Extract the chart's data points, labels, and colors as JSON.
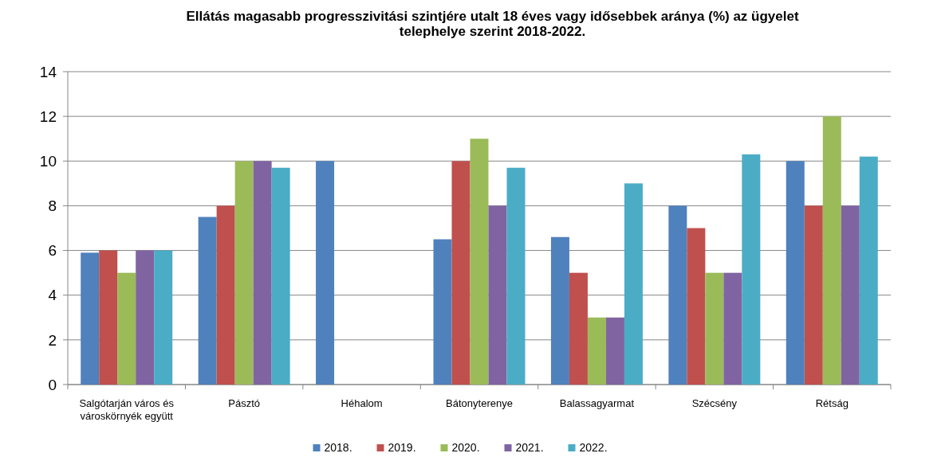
{
  "chart_data": {
    "type": "bar",
    "title": "Ellátás magasabb progresszivitási szintjére utalt 18 éves vagy idősebbek aránya (%) az ügyelet telephelye szerint 2018-2022.",
    "categories": [
      "Salgótarján város és városkörnyék együtt",
      "Pásztó",
      "Héhalom",
      "Bátonyterenye",
      "Balassagyarmat",
      "Szécsény",
      "Rétság"
    ],
    "series": [
      {
        "name": "2018.",
        "color": "#4f81bd",
        "values": [
          5.9,
          7.5,
          10,
          6.5,
          6.6,
          8,
          10
        ]
      },
      {
        "name": "2019.",
        "color": "#c0504d",
        "values": [
          6,
          8,
          0,
          10,
          5,
          7,
          8
        ]
      },
      {
        "name": "2020.",
        "color": "#9bbb59",
        "values": [
          5,
          10,
          0,
          11,
          3,
          5,
          12
        ]
      },
      {
        "name": "2021.",
        "color": "#8064a2",
        "values": [
          6,
          10,
          0,
          8,
          3,
          5,
          8
        ]
      },
      {
        "name": "2022.",
        "color": "#4bacc6",
        "values": [
          6,
          9.7,
          0,
          9.7,
          9,
          10.3,
          10.2
        ]
      }
    ],
    "ylim": [
      0,
      14
    ],
    "yticks": [
      0,
      2,
      4,
      6,
      8,
      10,
      12,
      14
    ],
    "grid": "y",
    "legend": "bottom"
  }
}
